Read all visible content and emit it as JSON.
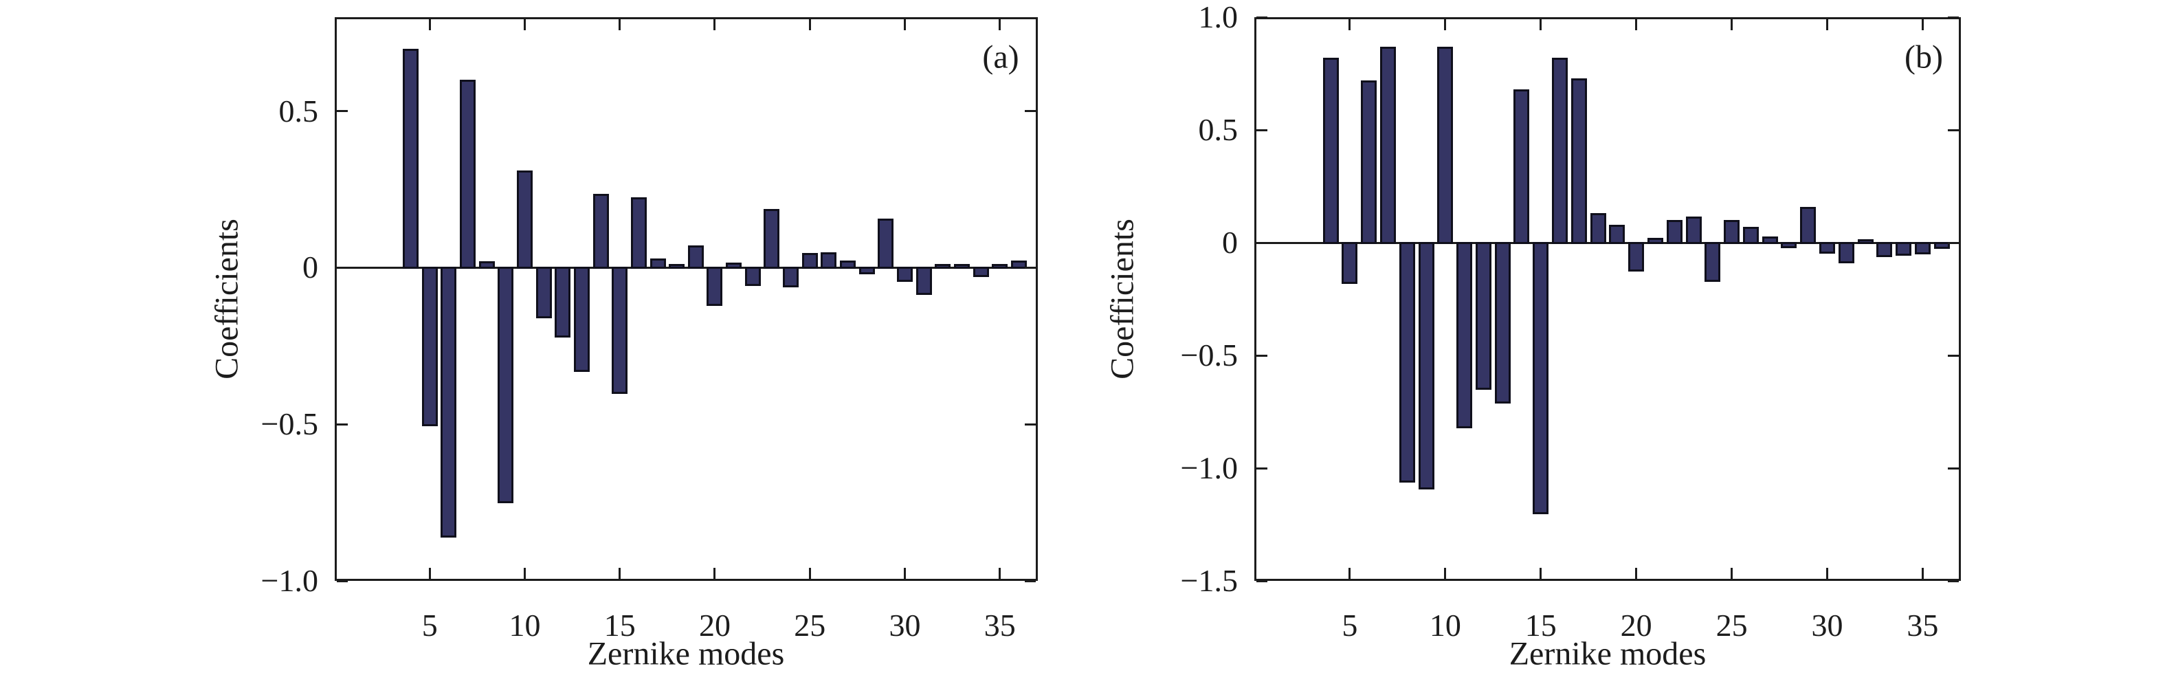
{
  "figure": {
    "background": "#ffffff",
    "bar_fill": "#353564",
    "bar_edge": "#10101c",
    "axis_color": "#1c1c1c"
  },
  "chart_data": [
    {
      "type": "bar",
      "panel_label": "(a)",
      "xlabel": "Zernike modes",
      "ylabel": "Coefficients",
      "xlim": [
        0,
        37
      ],
      "ylim": [
        -1.0,
        0.8
      ],
      "grid": false,
      "legend_position": "none",
      "x_ticks": [
        5,
        10,
        15,
        20,
        25,
        30,
        35
      ],
      "y_ticks": [
        0.5,
        0,
        -0.5,
        -1.0
      ],
      "y_tick_labels": [
        "0.5",
        "0",
        "−0.5",
        "−1.0"
      ],
      "x": [
        4,
        5,
        6,
        7,
        8,
        9,
        10,
        11,
        12,
        13,
        14,
        15,
        16,
        17,
        18,
        19,
        20,
        21,
        22,
        23,
        24,
        25,
        26,
        27,
        28,
        29,
        30,
        31,
        32,
        33,
        34,
        35,
        36
      ],
      "values": [
        0.7,
        -0.505,
        -0.86,
        0.6,
        0.02,
        -0.75,
        0.31,
        -0.16,
        -0.22,
        -0.33,
        0.235,
        -0.4,
        0.225,
        0.03,
        0.012,
        0.072,
        -0.12,
        0.016,
        -0.057,
        0.187,
        -0.06,
        0.046,
        0.05,
        0.023,
        -0.018,
        0.156,
        -0.044,
        -0.084,
        0.013,
        0.013,
        -0.027,
        0.013,
        0.022
      ]
    },
    {
      "type": "bar",
      "panel_label": "(b)",
      "xlabel": "Zernike modes",
      "ylabel": "Coefficients",
      "xlim": [
        0,
        37
      ],
      "ylim": [
        -1.5,
        1.0
      ],
      "grid": false,
      "legend_position": "none",
      "x_ticks": [
        5,
        10,
        15,
        20,
        25,
        30,
        35
      ],
      "y_ticks": [
        1.0,
        0.5,
        0,
        -0.5,
        -1.0,
        -1.5
      ],
      "y_tick_labels": [
        "1.0",
        "0.5",
        "0",
        "−0.5",
        "−1.0",
        "−1.5"
      ],
      "x": [
        4,
        5,
        6,
        7,
        8,
        9,
        10,
        11,
        12,
        13,
        14,
        15,
        16,
        17,
        18,
        19,
        20,
        21,
        22,
        23,
        24,
        25,
        26,
        27,
        28,
        29,
        30,
        31,
        32,
        33,
        34,
        35,
        36
      ],
      "values": [
        0.82,
        -0.18,
        0.72,
        0.87,
        -1.06,
        -1.09,
        0.87,
        -0.82,
        -0.65,
        -0.71,
        0.68,
        -1.2,
        0.82,
        0.73,
        0.13,
        0.08,
        -0.125,
        0.02,
        0.1,
        0.115,
        -0.17,
        0.1,
        0.07,
        0.028,
        -0.02,
        0.16,
        -0.045,
        -0.088,
        0.015,
        -0.062,
        -0.055,
        -0.05,
        -0.024
      ]
    }
  ]
}
